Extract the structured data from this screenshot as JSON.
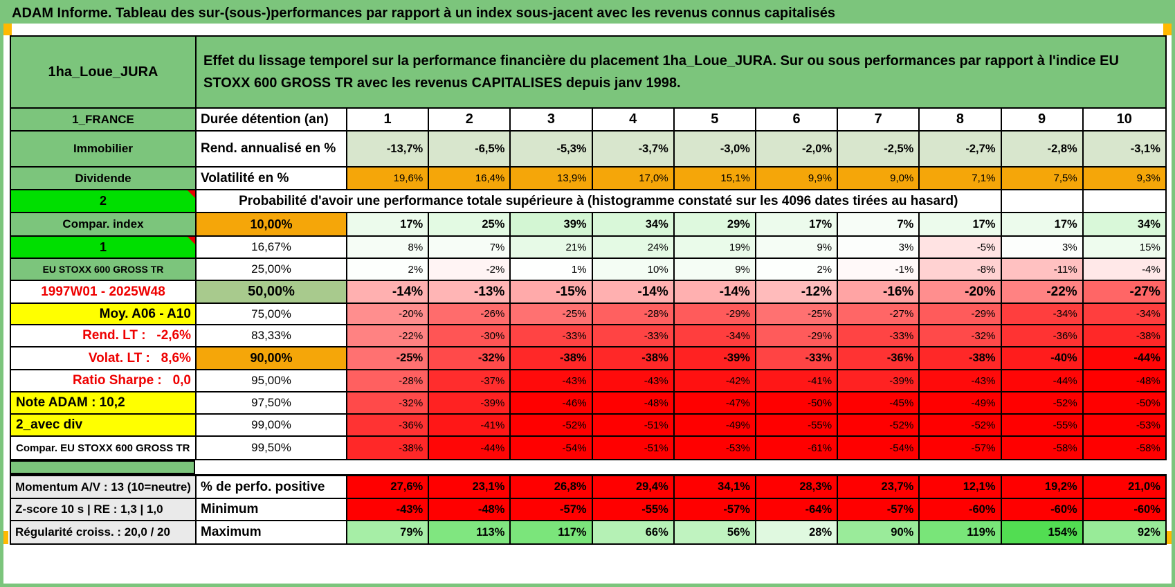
{
  "title": "ADAM Informe. Tableau des sur-(sous-)performances par rapport à un index sous-jacent avec les revenus connus capitalisés",
  "header": {
    "placement": "1ha_Loue_JURA",
    "description": "Effet du lissage temporel sur la performance financière du placement 1ha_Loue_JURA. Sur ou sous performances par rapport à l'indice EU STOXX 600 GROSS TR avec les revenus CAPITALISES depuis janv 1998."
  },
  "col_headers": [
    "1",
    "2",
    "3",
    "4",
    "5",
    "6",
    "7",
    "8",
    "9",
    "10"
  ],
  "table": {
    "rows": [
      {
        "kind": "colheader",
        "left": "1_FRANCE",
        "leftStyle": "green",
        "label": "Durée détention (an)"
      },
      {
        "kind": "fixed",
        "left": "Immobilier",
        "leftStyle": "green",
        "label": "Rend. annualisé en %",
        "cellStyle": "lightgreen",
        "bold": true,
        "values": [
          "-13,7%",
          "-6,5%",
          "-5,3%",
          "-3,7%",
          "-3,0%",
          "-2,0%",
          "-2,5%",
          "-2,7%",
          "-2,8%",
          "-3,1%"
        ]
      },
      {
        "kind": "fixed",
        "left": "Dividende",
        "leftStyle": "green",
        "label": "Volatilité en %",
        "cellStyle": "orange",
        "bold": false,
        "values": [
          "19,6%",
          "16,4%",
          "13,9%",
          "17,0%",
          "15,1%",
          "9,9%",
          "9,0%",
          "7,1%",
          "7,5%",
          "9,3%"
        ]
      },
      {
        "kind": "band",
        "left": "2",
        "leftStyle": "bright",
        "band": "Probabilité d'avoir une performance totale supérieure à (histogramme constaté sur les 4096 dates tirées au hasard)"
      },
      {
        "kind": "scale",
        "left": "Compar. index",
        "leftStyle": "green",
        "label": "10,00%",
        "labelStyle": "orange",
        "bold": true,
        "values": [
          "17%",
          "25%",
          "39%",
          "34%",
          "29%",
          "17%",
          "7%",
          "17%",
          "17%",
          "34%"
        ]
      },
      {
        "kind": "scale",
        "left": "1",
        "leftStyle": "bright",
        "label": "16,67%",
        "values": [
          "8%",
          "7%",
          "21%",
          "24%",
          "19%",
          "9%",
          "3%",
          "-5%",
          "3%",
          "15%"
        ]
      },
      {
        "kind": "scale",
        "left": "EU STOXX 600 GROSS TR",
        "leftStyle": "green-sm",
        "label": "25,00%",
        "values": [
          "2%",
          "-2%",
          "1%",
          "10%",
          "9%",
          "2%",
          "-1%",
          "-8%",
          "-11%",
          "-4%"
        ]
      },
      {
        "kind": "scale",
        "left": "1997W01 - 2025W48",
        "leftStyle": "red",
        "label": "50,00%",
        "labelStyle": "green-mid",
        "bold": true,
        "big": true,
        "values": [
          "-14%",
          "-13%",
          "-15%",
          "-14%",
          "-14%",
          "-12%",
          "-16%",
          "-20%",
          "-22%",
          "-27%"
        ]
      },
      {
        "kind": "scale",
        "left": "Moy. A06 - A10",
        "leftStyle": "yellow-r",
        "label": "75,00%",
        "values": [
          "-20%",
          "-26%",
          "-25%",
          "-28%",
          "-29%",
          "-25%",
          "-27%",
          "-29%",
          "-34%",
          "-34%"
        ]
      },
      {
        "kind": "scale",
        "left": "Rend. LT :   -2,6%",
        "leftStyle": "red-r",
        "label": "83,33%",
        "values": [
          "-22%",
          "-30%",
          "-33%",
          "-33%",
          "-34%",
          "-29%",
          "-33%",
          "-32%",
          "-36%",
          "-38%"
        ]
      },
      {
        "kind": "scale",
        "left": "Volat. LT :   8,6%",
        "leftStyle": "red-r",
        "label": "90,00%",
        "labelStyle": "orange",
        "bold": true,
        "values": [
          "-25%",
          "-32%",
          "-38%",
          "-38%",
          "-39%",
          "-33%",
          "-36%",
          "-38%",
          "-40%",
          "-44%"
        ]
      },
      {
        "kind": "scale",
        "left": "Ratio Sharpe :   0,0",
        "leftStyle": "red-r",
        "label": "95,00%",
        "values": [
          "-28%",
          "-37%",
          "-43%",
          "-43%",
          "-42%",
          "-41%",
          "-39%",
          "-43%",
          "-44%",
          "-48%"
        ]
      },
      {
        "kind": "scale",
        "left": "Note ADAM : 10,2",
        "leftStyle": "yellow-l",
        "label": "97,50%",
        "values": [
          "-32%",
          "-39%",
          "-46%",
          "-48%",
          "-47%",
          "-50%",
          "-45%",
          "-49%",
          "-52%",
          "-50%"
        ]
      },
      {
        "kind": "scale",
        "left": "2_avec div",
        "leftStyle": "yellow-l",
        "label": "99,00%",
        "values": [
          "-36%",
          "-41%",
          "-52%",
          "-51%",
          "-49%",
          "-55%",
          "-52%",
          "-52%",
          "-55%",
          "-53%"
        ]
      },
      {
        "kind": "scale",
        "left": "Compar. EU STOXX 600 GROSS TR",
        "leftStyle": "plain-l",
        "label": "99,50%",
        "values": [
          "-38%",
          "-44%",
          "-54%",
          "-51%",
          "-53%",
          "-61%",
          "-54%",
          "-57%",
          "-58%",
          "-58%"
        ]
      }
    ]
  },
  "bottom": {
    "rows": [
      {
        "kind": "solid",
        "left": "Momentum A/V : 13 (10=neutre)",
        "label": "% de perfo. positive",
        "values": [
          "27,6%",
          "23,1%",
          "26,8%",
          "29,4%",
          "34,1%",
          "28,3%",
          "23,7%",
          "12,1%",
          "19,2%",
          "21,0%"
        ]
      },
      {
        "kind": "solid",
        "left": "Z-score 10 s | RE : 1,3 | 1,0",
        "label": "Minimum",
        "values": [
          "-43%",
          "-48%",
          "-57%",
          "-55%",
          "-57%",
          "-64%",
          "-57%",
          "-60%",
          "-60%",
          "-60%"
        ]
      },
      {
        "kind": "greenscale",
        "left": "Régularité croiss. : 20,0 / 20",
        "label": "Maximum",
        "values": [
          "79%",
          "113%",
          "117%",
          "66%",
          "56%",
          "28%",
          "90%",
          "119%",
          "154%",
          "92%"
        ]
      }
    ]
  },
  "colors": {
    "frame_green": "#7CC57C",
    "bright_green": "#00DF00",
    "orange": "#F5A609",
    "yellow": "#FFFF00",
    "red_text": "#EE0000",
    "solid_red": "#FF0000",
    "light_green_row": "#D8E6CD",
    "mid_green": "#A8CA8D",
    "gray_left": "#EAEAEA",
    "corner_orange": "#FFB902",
    "border": "#000000"
  }
}
